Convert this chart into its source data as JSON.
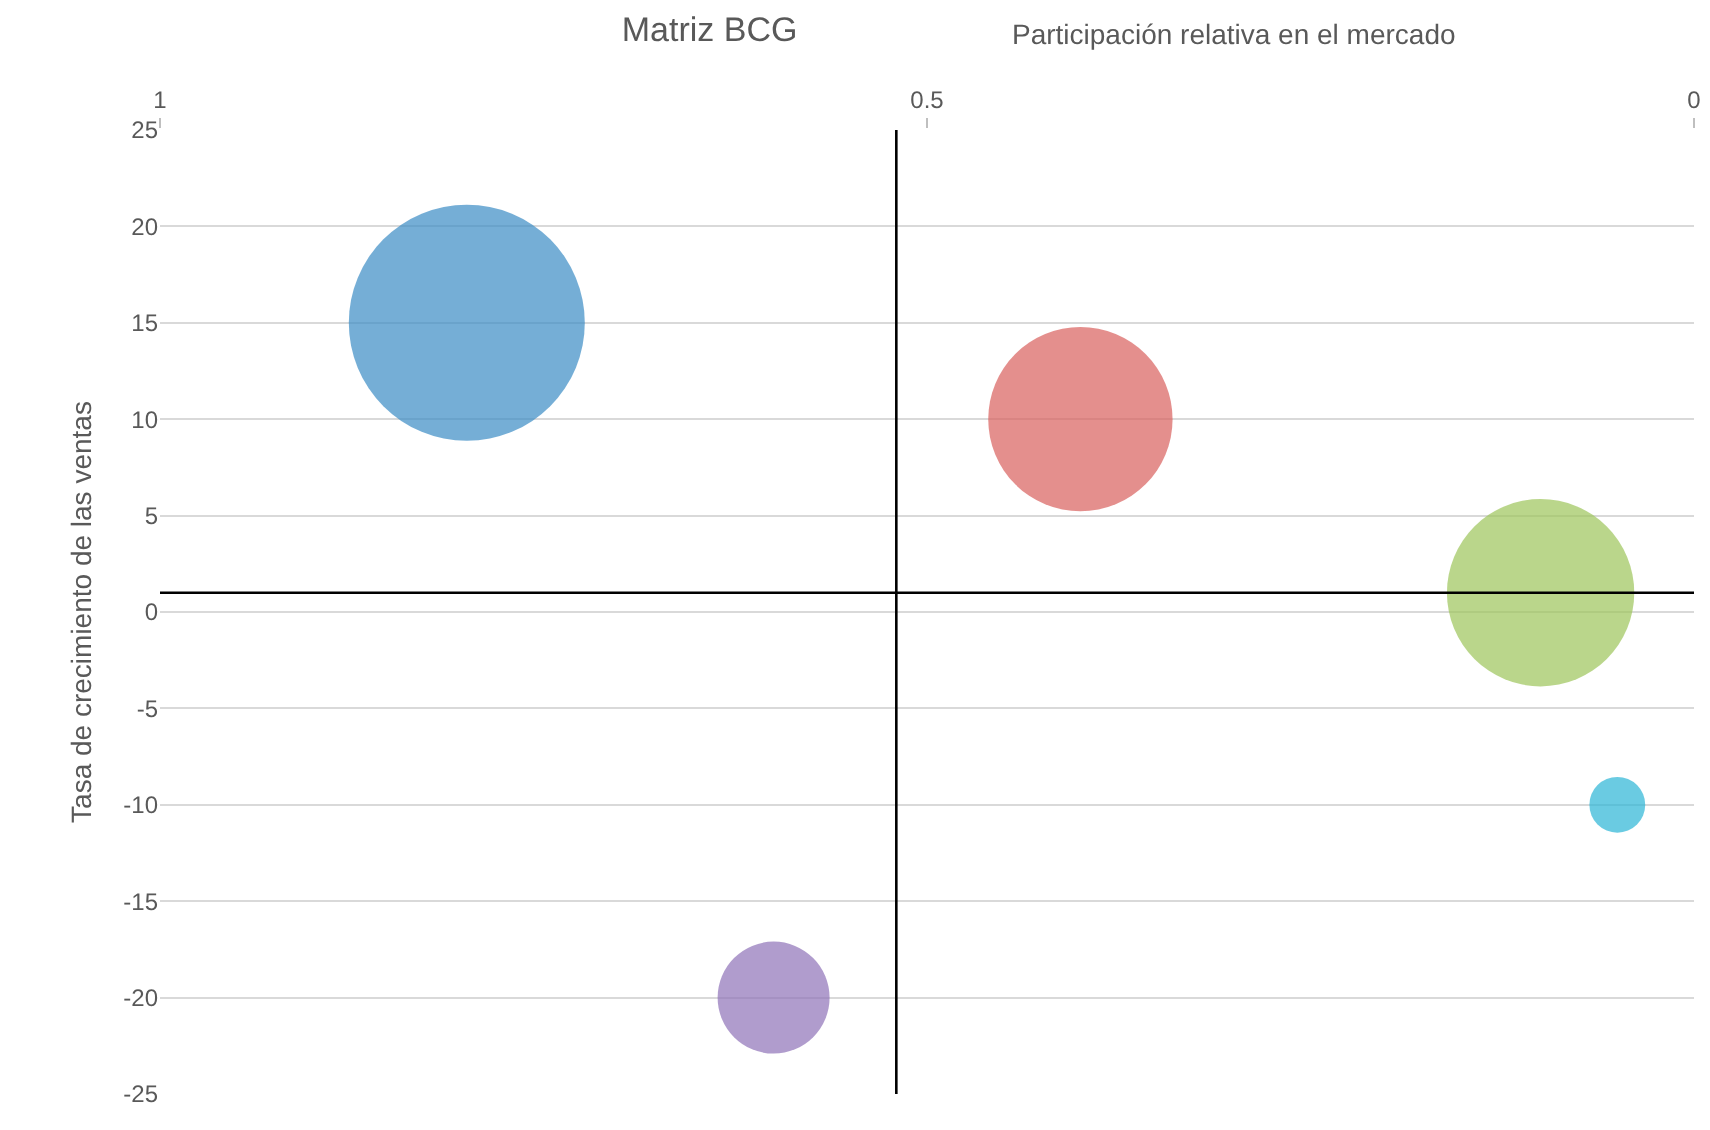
{
  "chart_data": {
    "type": "bubble",
    "title": "Matriz BCG",
    "xlabel": "Participación relativa en el mercado",
    "ylabel": "Tasa de crecimiento de las ventas",
    "x": [
      0.8,
      0.4,
      0.1,
      0.05,
      0.6
    ],
    "values": [
      15,
      10,
      1,
      -10,
      -20
    ],
    "sizes": [
      1,
      0.61,
      0.63,
      0.056,
      0.225
    ],
    "relative": false,
    "colors": [
      "#3b8bc4",
      "#d9605c",
      "#9cc45a",
      "#2bb5d5",
      "#8e72b8"
    ],
    "xlim": [
      1,
      0
    ],
    "xticks": [
      1,
      0.5,
      0
    ],
    "ylim": [
      -25,
      25
    ],
    "yticks": [
      -25,
      -20,
      -15,
      -10,
      -5,
      0,
      5,
      10,
      15,
      20,
      25
    ],
    "ref_lines": [
      {
        "axis": "x",
        "value": 0.52,
        "color": "#000000"
      },
      {
        "axis": "y",
        "value": 1,
        "color": "#000000"
      }
    ],
    "grid": "y"
  }
}
